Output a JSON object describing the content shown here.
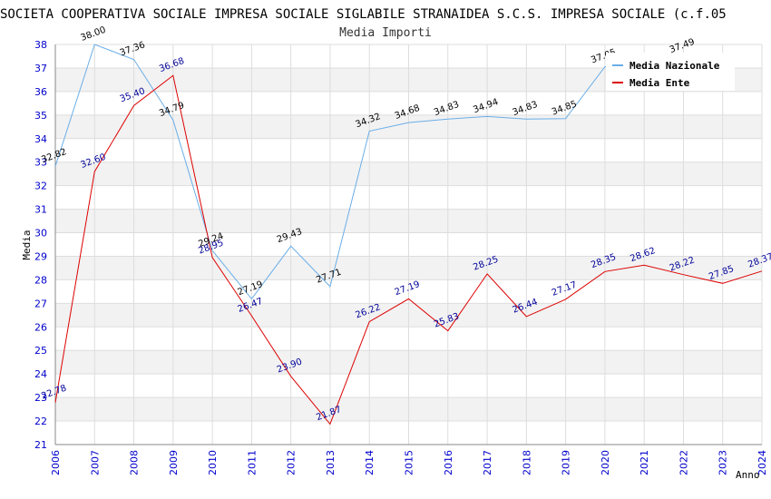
{
  "chart_data": {
    "type": "line",
    "title": "SOCIETA COOPERATIVA SOCIALE IMPRESA SOCIALE SIGLABILE STRANAIDEA S.C.S. IMPRESA SOCIALE (c.f.05",
    "subtitle": "Media Importi",
    "xlabel": "Anno",
    "ylabel": "Media",
    "ylim": [
      21,
      38
    ],
    "x": [
      "2006",
      "2007",
      "2008",
      "2009",
      "2010",
      "2011",
      "2012",
      "2013",
      "2014",
      "2015",
      "2016",
      "2017",
      "2018",
      "2019",
      "2020",
      "2021",
      "2022",
      "2023",
      "2024"
    ],
    "grid": true,
    "legend_position": "top-right",
    "series": [
      {
        "name": "Media Nazionale",
        "color": "#6aaee8",
        "label_color": "#000000",
        "values": [
          32.82,
          38.0,
          37.36,
          34.79,
          29.24,
          27.19,
          29.43,
          27.71,
          34.32,
          34.68,
          34.83,
          34.94,
          34.83,
          34.85,
          37.05,
          null,
          37.49,
          null,
          null
        ],
        "labels": [
          "32.82",
          "38.00",
          "37.36",
          "34.79",
          "29.24",
          "27.19",
          "29.43",
          "27.71",
          "34.32",
          "34.68",
          "34.83",
          "34.94",
          "34.83",
          "34.85",
          "37.05",
          "",
          "37.49",
          "",
          ""
        ]
      },
      {
        "name": "Media Ente",
        "color": "#dd0000",
        "label_color": "#000099",
        "values": [
          22.78,
          32.6,
          35.4,
          36.68,
          28.95,
          26.47,
          23.9,
          21.87,
          26.22,
          27.19,
          25.83,
          28.25,
          26.44,
          27.17,
          28.35,
          28.62,
          28.22,
          27.85,
          28.37
        ],
        "labels": [
          "22.78",
          "32.60",
          "35.40",
          "36.68",
          "28.95",
          "26.47",
          "23.90",
          "21.87",
          "26.22",
          "27.19",
          "25.83",
          "28.25",
          "26.44",
          "27.17",
          "28.35",
          "28.62",
          "28.22",
          "27.85",
          "28.37"
        ]
      }
    ]
  }
}
